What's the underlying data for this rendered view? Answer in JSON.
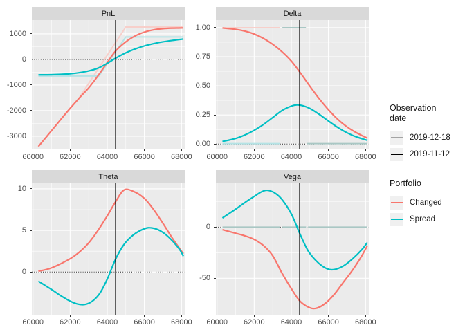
{
  "figure": {
    "panel_bg": "#EBEBEB",
    "strip_bg": "#D9D9D9",
    "grid_color": "#FFFFFF",
    "axis_text_color": "#4D4D4D",
    "vline_x": 64450,
    "x": {
      "lim": [
        59937,
        68176
      ],
      "ticks": [
        60000,
        62000,
        64000,
        66000,
        68000
      ],
      "tick_labels": [
        "60000",
        "62000",
        "64000",
        "66000",
        "68000"
      ],
      "minor": [
        61000,
        63000,
        65000,
        67000
      ]
    }
  },
  "colors": {
    "changed": "#F8766D",
    "spread": "#00BFC4",
    "changed_expiry": "#F7CFCA",
    "spread_expiry": "#B4E3E5",
    "expiry_overlap": "#A9C7C4",
    "date_2019_12_18": "#A3A3A3",
    "date_2019_11_12": "#000000"
  },
  "legend": {
    "observation": {
      "title": "Observation\ndate",
      "items": [
        {
          "label": "2019-12-18",
          "color_key": "date_2019_12_18"
        },
        {
          "label": "2019-11-12",
          "color_key": "date_2019_11_12"
        }
      ]
    },
    "portfolio": {
      "title": "Portfolio",
      "items": [
        {
          "label": "Changed",
          "color_key": "changed"
        },
        {
          "label": "Spread",
          "color_key": "spread"
        }
      ]
    }
  },
  "chart_data": [
    {
      "type": "line",
      "title": "PnL",
      "ylim": [
        -3514,
        1540
      ],
      "yticks": [
        {
          "v": 1000,
          "label": "1000"
        },
        {
          "v": 0,
          "label": "0"
        },
        {
          "v": -1000,
          "label": "-1000"
        },
        {
          "v": -2000,
          "label": "-2000"
        },
        {
          "v": -3000,
          "label": "-3000"
        }
      ],
      "yminor": [
        500,
        -500,
        -1500,
        -2500,
        -3500
      ],
      "zero_dotted": true,
      "series": [
        {
          "name": "changed-expiry-payoff",
          "color_key": "changed_expiry",
          "width": 2,
          "smooth": false,
          "points": [
            [
              62380,
              -1620
            ],
            [
              65000,
              1270
            ],
            [
              68100,
              1270
            ]
          ]
        },
        {
          "name": "spread-expiry-payoff",
          "color_key": "spread_expiry",
          "width": 2,
          "smooth": false,
          "points": [
            [
              60290,
              -645
            ],
            [
              63550,
              -645
            ],
            [
              65000,
              880
            ],
            [
              68100,
              880
            ]
          ]
        },
        {
          "name": "changed",
          "color_key": "changed",
          "width": 2.2,
          "smooth": true,
          "points": [
            [
              60290,
              -3400
            ],
            [
              61000,
              -2780
            ],
            [
              61500,
              -2340
            ],
            [
              62000,
              -1910
            ],
            [
              62500,
              -1500
            ],
            [
              63000,
              -1110
            ],
            [
              63500,
              -640
            ],
            [
              64000,
              -120
            ],
            [
              64450,
              330
            ],
            [
              65000,
              690
            ],
            [
              65500,
              920
            ],
            [
              66000,
              1070
            ],
            [
              66500,
              1160
            ],
            [
              67000,
              1205
            ],
            [
              67500,
              1225
            ],
            [
              68100,
              1235
            ]
          ]
        },
        {
          "name": "spread",
          "color_key": "spread",
          "width": 2.2,
          "smooth": true,
          "points": [
            [
              60290,
              -600
            ],
            [
              61000,
              -595
            ],
            [
              61500,
              -582
            ],
            [
              62000,
              -558
            ],
            [
              62500,
              -515
            ],
            [
              63000,
              -448
            ],
            [
              63500,
              -340
            ],
            [
              64000,
              -150
            ],
            [
              64450,
              50
            ],
            [
              65000,
              260
            ],
            [
              65500,
              410
            ],
            [
              66000,
              530
            ],
            [
              66500,
              620
            ],
            [
              67000,
              690
            ],
            [
              67500,
              745
            ],
            [
              68100,
              800
            ]
          ]
        }
      ]
    },
    {
      "type": "line",
      "title": "Delta",
      "ylim": [
        -0.046,
        1.065
      ],
      "yticks": [
        {
          "v": 1.0,
          "label": "1.00"
        },
        {
          "v": 0.75,
          "label": "0.75"
        },
        {
          "v": 0.5,
          "label": "0.50"
        },
        {
          "v": 0.25,
          "label": "0.25"
        },
        {
          "v": 0.0,
          "label": "0.00"
        }
      ],
      "yminor": [
        0.875,
        0.625,
        0.375,
        0.125
      ],
      "zero_dotted": true,
      "series": [
        {
          "name": "changed-expiry-delta-itm",
          "color_key": "changed_expiry",
          "width": 2,
          "smooth": false,
          "points": [
            [
              60290,
              1.0
            ],
            [
              63370,
              1.0
            ]
          ]
        },
        {
          "name": "expiry-delta-overlap-high",
          "color_key": "expiry_overlap",
          "width": 2,
          "smooth": false,
          "points": [
            [
              63520,
              1.0
            ],
            [
              64790,
              1.0
            ]
          ]
        },
        {
          "name": "spread-expiry-delta-low",
          "color_key": "spread_expiry",
          "width": 2,
          "smooth": false,
          "points": [
            [
              60290,
              0.004
            ],
            [
              63370,
              0.004
            ]
          ]
        },
        {
          "name": "expiry-delta-overlap-low",
          "color_key": "expiry_overlap",
          "width": 2,
          "smooth": false,
          "points": [
            [
              64860,
              0.004
            ],
            [
              68100,
              0.004
            ]
          ]
        },
        {
          "name": "changed",
          "color_key": "changed",
          "width": 2.2,
          "smooth": true,
          "points": [
            [
              60290,
              0.997
            ],
            [
              61000,
              0.986
            ],
            [
              61500,
              0.97
            ],
            [
              62000,
              0.945
            ],
            [
              62500,
              0.908
            ],
            [
              63000,
              0.857
            ],
            [
              63500,
              0.793
            ],
            [
              64000,
              0.713
            ],
            [
              64450,
              0.62
            ],
            [
              65000,
              0.497
            ],
            [
              65500,
              0.39
            ],
            [
              66000,
              0.295
            ],
            [
              66500,
              0.213
            ],
            [
              67000,
              0.148
            ],
            [
              67500,
              0.098
            ],
            [
              68100,
              0.05
            ]
          ]
        },
        {
          "name": "spread",
          "color_key": "spread",
          "width": 2.2,
          "smooth": true,
          "points": [
            [
              60290,
              0.022
            ],
            [
              61000,
              0.048
            ],
            [
              61500,
              0.078
            ],
            [
              62000,
              0.118
            ],
            [
              62500,
              0.168
            ],
            [
              63000,
              0.228
            ],
            [
              63500,
              0.288
            ],
            [
              64000,
              0.326
            ],
            [
              64300,
              0.336
            ],
            [
              64600,
              0.33
            ],
            [
              65000,
              0.306
            ],
            [
              65500,
              0.256
            ],
            [
              66000,
              0.198
            ],
            [
              66500,
              0.143
            ],
            [
              67000,
              0.097
            ],
            [
              67500,
              0.062
            ],
            [
              68100,
              0.032
            ]
          ]
        }
      ]
    },
    {
      "type": "line",
      "title": "Theta",
      "ylim": [
        -5.13,
        10.66
      ],
      "yticks": [
        {
          "v": 10,
          "label": "10"
        },
        {
          "v": 5,
          "label": "5"
        },
        {
          "v": 0,
          "label": "0"
        }
      ],
      "yminor": [
        7.5,
        2.5,
        -2.5
      ],
      "zero_dotted": true,
      "series": [
        {
          "name": "changed",
          "color_key": "changed",
          "width": 2.2,
          "smooth": true,
          "points": [
            [
              60290,
              0.1
            ],
            [
              61000,
              0.5
            ],
            [
              62000,
              1.6
            ],
            [
              62500,
              2.4
            ],
            [
              63000,
              3.5
            ],
            [
              63500,
              5.0
            ],
            [
              64000,
              6.75
            ],
            [
              64450,
              8.45
            ],
            [
              64900,
              9.85
            ],
            [
              65400,
              9.7
            ],
            [
              66000,
              8.85
            ],
            [
              66500,
              7.5
            ],
            [
              67000,
              5.85
            ],
            [
              67500,
              4.1
            ],
            [
              68100,
              2.2
            ]
          ]
        },
        {
          "name": "spread",
          "color_key": "spread",
          "width": 2.2,
          "smooth": true,
          "points": [
            [
              60290,
              -1.1
            ],
            [
              61000,
              -2.1
            ],
            [
              61500,
              -2.85
            ],
            [
              62000,
              -3.5
            ],
            [
              62400,
              -3.85
            ],
            [
              62800,
              -3.9
            ],
            [
              63200,
              -3.5
            ],
            [
              63600,
              -2.55
            ],
            [
              64000,
              -0.85
            ],
            [
              64450,
              1.55
            ],
            [
              64900,
              3.3
            ],
            [
              65400,
              4.45
            ],
            [
              66000,
              5.2
            ],
            [
              66400,
              5.3
            ],
            [
              66900,
              4.9
            ],
            [
              67400,
              4.0
            ],
            [
              67900,
              2.7
            ],
            [
              68100,
              1.9
            ]
          ]
        }
      ]
    },
    {
      "type": "line",
      "title": "Vega",
      "ylim": [
        -85.6,
        42.8
      ],
      "yticks": [
        {
          "v": 0,
          "label": "0"
        },
        {
          "v": -50,
          "label": "-50"
        }
      ],
      "yminor": [
        25,
        -25,
        -75
      ],
      "zero_dotted": true,
      "series": [
        {
          "name": "expiry-vega-zero-a",
          "color_key": "expiry_overlap",
          "width": 2,
          "smooth": false,
          "points": [
            [
              60290,
              0
            ],
            [
              63400,
              0
            ]
          ]
        },
        {
          "name": "expiry-vega-zero-b",
          "color_key": "expiry_overlap",
          "width": 2,
          "smooth": false,
          "points": [
            [
              63520,
              0
            ],
            [
              64800,
              0
            ]
          ]
        },
        {
          "name": "expiry-vega-zero-c",
          "color_key": "expiry_overlap",
          "width": 2,
          "smooth": false,
          "points": [
            [
              64900,
              0
            ],
            [
              68100,
              0
            ]
          ]
        },
        {
          "name": "changed",
          "color_key": "changed",
          "width": 2.2,
          "smooth": true,
          "points": [
            [
              60290,
              -2.5
            ],
            [
              61000,
              -6
            ],
            [
              61500,
              -8.5
            ],
            [
              62000,
              -12
            ],
            [
              62500,
              -18
            ],
            [
              63000,
              -28
            ],
            [
              63500,
              -45
            ],
            [
              64000,
              -60
            ],
            [
              64450,
              -72
            ],
            [
              64900,
              -78
            ],
            [
              65300,
              -79.5
            ],
            [
              65800,
              -75
            ],
            [
              66300,
              -66
            ],
            [
              66800,
              -54
            ],
            [
              67300,
              -42
            ],
            [
              67800,
              -28
            ],
            [
              68100,
              -18
            ]
          ]
        },
        {
          "name": "spread",
          "color_key": "spread",
          "width": 2.2,
          "smooth": true,
          "points": [
            [
              60290,
              9
            ],
            [
              61000,
              17.5
            ],
            [
              61500,
              24
            ],
            [
              62000,
              30
            ],
            [
              62400,
              34.5
            ],
            [
              62700,
              36
            ],
            [
              63100,
              33.5
            ],
            [
              63500,
              27
            ],
            [
              64000,
              13
            ],
            [
              64450,
              -6
            ],
            [
              64900,
              -23
            ],
            [
              65400,
              -34
            ],
            [
              65900,
              -40.5
            ],
            [
              66300,
              -41.5
            ],
            [
              66800,
              -38
            ],
            [
              67300,
              -31
            ],
            [
              67800,
              -22
            ],
            [
              68100,
              -15
            ]
          ]
        }
      ]
    }
  ]
}
